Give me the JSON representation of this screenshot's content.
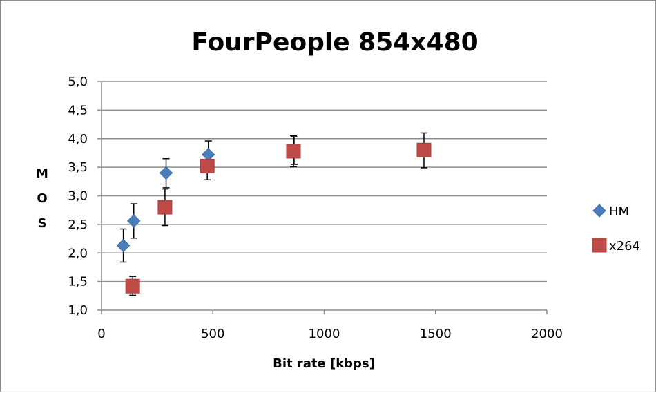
{
  "chart_data": {
    "type": "scatter",
    "title": "FourPeople 854x480",
    "xlabel": "Bit rate [kbps]",
    "ylabel": "M O S",
    "ylabel_letters": [
      "M",
      "O",
      "S"
    ],
    "xlim": [
      0,
      2000
    ],
    "ylim": [
      1.0,
      5.0
    ],
    "x_ticks": [
      0,
      500,
      1000,
      1500,
      2000
    ],
    "x_tick_labels": [
      "0",
      "500",
      "1000",
      "1500",
      "2000"
    ],
    "y_ticks": [
      1.0,
      1.5,
      2.0,
      2.5,
      3.0,
      3.5,
      4.0,
      4.5,
      5.0
    ],
    "y_tick_labels": [
      "1,0",
      "1,5",
      "2,0",
      "2,5",
      "3,0",
      "3,5",
      "4,0",
      "4,5",
      "5,0"
    ],
    "grid": "horizontal",
    "legend_position": "right",
    "series": [
      {
        "name": "HM",
        "marker": "diamond",
        "color": "#4a7ebb",
        "points": [
          {
            "x": 98,
            "y": 2.13,
            "err_low": 1.84,
            "err_high": 2.42
          },
          {
            "x": 145,
            "y": 2.56,
            "err_low": 2.26,
            "err_high": 2.86
          },
          {
            "x": 290,
            "y": 3.4,
            "err_low": 3.14,
            "err_high": 3.65
          },
          {
            "x": 480,
            "y": 3.72,
            "err_low": 3.48,
            "err_high": 3.96
          },
          {
            "x": 865,
            "y": 3.8,
            "err_low": 3.55,
            "err_high": 4.03
          }
        ]
      },
      {
        "name": "x264",
        "marker": "square",
        "color": "#be4b48",
        "points": [
          {
            "x": 140,
            "y": 1.42,
            "err_low": 1.26,
            "err_high": 1.59
          },
          {
            "x": 285,
            "y": 2.8,
            "err_low": 2.48,
            "err_high": 3.12
          },
          {
            "x": 475,
            "y": 3.52,
            "err_low": 3.28,
            "err_high": 3.76
          },
          {
            "x": 862,
            "y": 3.78,
            "err_low": 3.51,
            "err_high": 4.05
          },
          {
            "x": 1448,
            "y": 3.8,
            "err_low": 3.49,
            "err_high": 4.1
          }
        ]
      }
    ]
  }
}
